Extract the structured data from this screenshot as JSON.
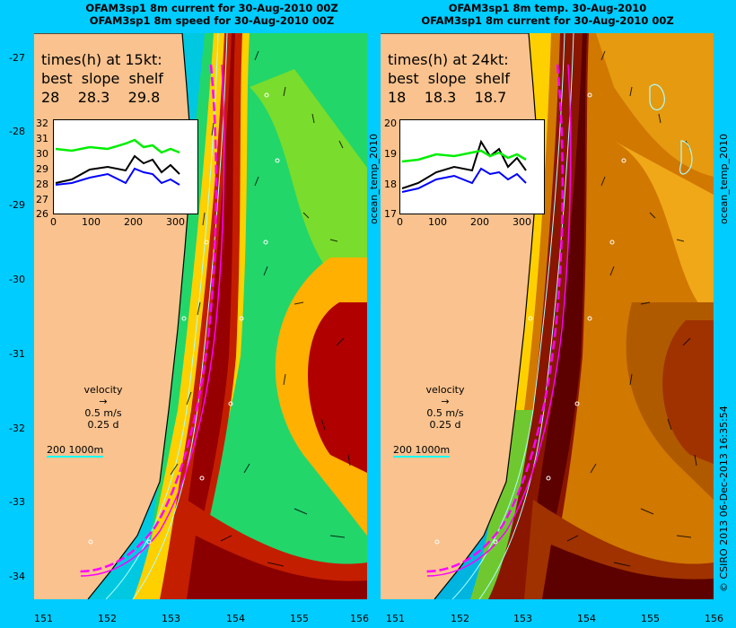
{
  "titles": {
    "left": [
      "OFAM3sp1 8m current for 30-Aug-2010 00Z",
      "OFAM3sp1 8m speed for 30-Aug-2010 00Z"
    ],
    "right": [
      "OFAM3sp1 8m temp. 30-Aug-2010",
      "OFAM3sp1 8m current for 30-Aug-2010 00Z"
    ]
  },
  "left_panel": {
    "times_header": "times(h) at 15kt:",
    "cols": "best  slope  shelf",
    "vals": "28    28.3    29.8",
    "inset_y": [
      "32",
      "31",
      "30",
      "29",
      "28",
      "27",
      "26"
    ],
    "inset_x": [
      "0",
      "100",
      "200",
      "300"
    ],
    "velocity": [
      "velocity",
      "0.5 m/s",
      "0.25 d"
    ],
    "scale": "200  1000m"
  },
  "right_panel": {
    "times_header": "times(h) at 24kt:",
    "cols": "best  slope  shelf",
    "vals": "18    18.3    18.7",
    "inset_y": [
      "20",
      "19",
      "18",
      "17"
    ],
    "inset_x": [
      "0",
      "100",
      "200",
      "300"
    ],
    "velocity": [
      "velocity",
      "0.5 m/s",
      "0.25 d"
    ],
    "scale": "200  1000m"
  },
  "lat_ticks": [
    "-27",
    "-28",
    "-29",
    "-30",
    "-31",
    "-32",
    "-33",
    "-34"
  ],
  "lon_ticks": [
    "151",
    "152",
    "153",
    "154",
    "155",
    "156"
  ],
  "side_labels": {
    "var": "ocean_temp_2010",
    "credit": "© CSIRO 2013   06-Dec-2013 16:35:54"
  },
  "colors": {
    "background": "#00ccff",
    "land": "#f9c28e",
    "track": "#ff00ff",
    "best": "#000000",
    "slope": "#0000ff",
    "shelf": "#00ff00"
  }
}
